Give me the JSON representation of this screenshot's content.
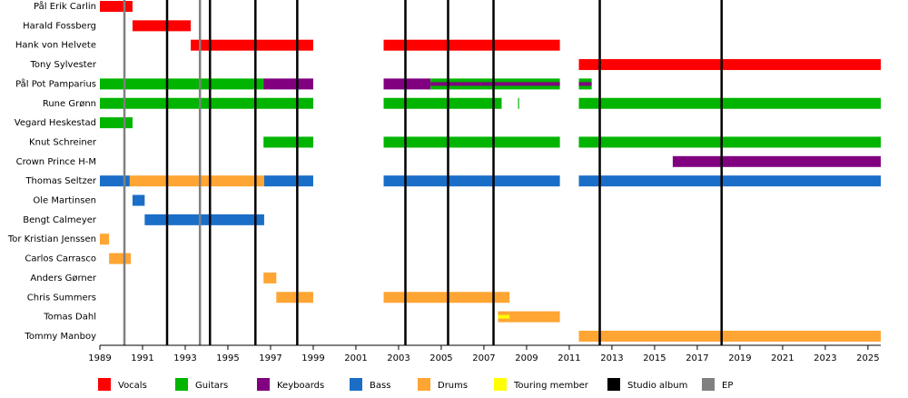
{
  "chart_data": {
    "type": "timeline",
    "xlim": [
      1989,
      2025.6
    ],
    "xticks": [
      1989,
      1991,
      1993,
      1995,
      1997,
      1999,
      2001,
      2003,
      2005,
      2007,
      2009,
      2011,
      2013,
      2015,
      2017,
      2019,
      2021,
      2023,
      2025
    ],
    "legend": [
      {
        "name": "Vocals",
        "color": "#ff0000"
      },
      {
        "name": "Guitars",
        "color": "#00b400"
      },
      {
        "name": "Keyboards",
        "color": "#800080"
      },
      {
        "name": "Bass",
        "color": "#1a6ec8"
      },
      {
        "name": "Drums",
        "color": "#ffa533"
      },
      {
        "name": "Touring member",
        "color": "#ffff00"
      },
      {
        "name": "Studio album",
        "color": "#000000"
      },
      {
        "name": "EP",
        "color": "#808080"
      }
    ],
    "studio_albums": [
      1992.15,
      1994.16,
      1996.29,
      1998.25,
      2003.32,
      2005.32,
      2007.45,
      2012.43,
      2018.14
    ],
    "eps": [
      1990.15,
      1993.69
    ],
    "members": [
      {
        "name": "Pål Erik Carlin",
        "segments": [
          {
            "role": "Vocals",
            "start": 1989,
            "end": 1990.53
          }
        ]
      },
      {
        "name": "Harald Fossberg",
        "segments": [
          {
            "role": "Vocals",
            "start": 1990.53,
            "end": 1993.26
          }
        ]
      },
      {
        "name": "Hank von Helvete",
        "segments": [
          {
            "role": "Vocals",
            "start": 1993.26,
            "end": 1999
          },
          {
            "role": "Vocals",
            "start": 2002.3,
            "end": 2010.56
          }
        ]
      },
      {
        "name": "Tony Sylvester",
        "segments": [
          {
            "role": "Vocals",
            "start": 2011.45,
            "end": 2025.6
          }
        ]
      },
      {
        "name": "Pål Pot Pamparius",
        "segments": [
          {
            "role": "Guitars",
            "start": 1989,
            "end": 1996.67
          },
          {
            "role": "Keyboards",
            "start": 1996.67,
            "end": 1999
          },
          {
            "role": "Keyboards",
            "start": 2002.3,
            "end": 2004.5
          },
          {
            "role": "Guitars",
            "start": 2004.5,
            "end": 2010.56,
            "stripe": "Keyboards"
          },
          {
            "role": "Guitars",
            "start": 2011.45,
            "end": 2012.05,
            "stripe": "Keyboards"
          }
        ]
      },
      {
        "name": "Rune Grønn",
        "segments": [
          {
            "role": "Guitars",
            "start": 1989,
            "end": 1999
          },
          {
            "role": "Guitars",
            "start": 2002.3,
            "end": 2007.83
          },
          {
            "role": "Guitars",
            "start": 2008.6,
            "end": 2008.65
          },
          {
            "role": "Guitars",
            "start": 2011.45,
            "end": 2025.6
          }
        ]
      },
      {
        "name": "Vegard Heskestad",
        "segments": [
          {
            "role": "Guitars",
            "start": 1989,
            "end": 1990.53
          }
        ]
      },
      {
        "name": "Knut Schreiner",
        "segments": [
          {
            "role": "Guitars",
            "start": 1996.67,
            "end": 1999
          },
          {
            "role": "Guitars",
            "start": 2002.3,
            "end": 2010.56
          },
          {
            "role": "Guitars",
            "start": 2011.45,
            "end": 2025.6
          }
        ]
      },
      {
        "name": "Crown Prince H-M",
        "segments": [
          {
            "role": "Keyboards",
            "start": 2015.85,
            "end": 2025.6
          }
        ]
      },
      {
        "name": "Thomas Seltzer",
        "segments": [
          {
            "role": "Bass",
            "start": 1989,
            "end": 1990.4
          },
          {
            "role": "Drums",
            "start": 1990.4,
            "end": 1996.7
          },
          {
            "role": "Bass",
            "start": 1996.7,
            "end": 1999
          },
          {
            "role": "Bass",
            "start": 2002.3,
            "end": 2010.56
          },
          {
            "role": "Bass",
            "start": 2011.45,
            "end": 2025.6
          }
        ]
      },
      {
        "name": "Ole Martinsen",
        "segments": [
          {
            "role": "Bass",
            "start": 1990.53,
            "end": 1991.1
          }
        ]
      },
      {
        "name": "Bengt Calmeyer",
        "segments": [
          {
            "role": "Bass",
            "start": 1991.1,
            "end": 1996.7
          }
        ]
      },
      {
        "name": "Tor Kristian Jenssen",
        "segments": [
          {
            "role": "Drums",
            "start": 1989,
            "end": 1989.43
          }
        ]
      },
      {
        "name": "Carlos Carrasco",
        "segments": [
          {
            "role": "Drums",
            "start": 1989.43,
            "end": 1990.45
          }
        ]
      },
      {
        "name": "Anders Gørner",
        "segments": [
          {
            "role": "Drums",
            "start": 1996.67,
            "end": 1997.27
          }
        ]
      },
      {
        "name": "Chris Summers",
        "segments": [
          {
            "role": "Drums",
            "start": 1997.27,
            "end": 1999
          },
          {
            "role": "Drums",
            "start": 2002.3,
            "end": 2008.2
          }
        ]
      },
      {
        "name": "Tomas Dahl",
        "segments": [
          {
            "role": "Drums",
            "start": 2007.66,
            "end": 2008.2,
            "stripe": "Touring member"
          },
          {
            "role": "Drums",
            "start": 2008.2,
            "end": 2010.56
          }
        ]
      },
      {
        "name": "Tommy Manboy",
        "segments": [
          {
            "role": "Drums",
            "start": 2011.45,
            "end": 2025.6
          }
        ]
      }
    ]
  }
}
